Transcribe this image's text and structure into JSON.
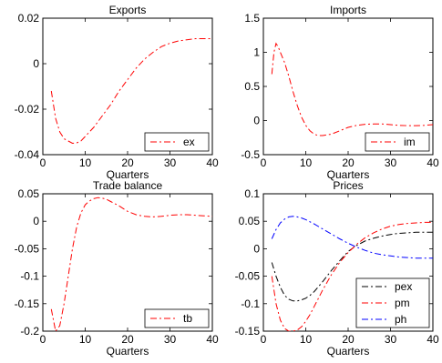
{
  "chart_data": [
    {
      "type": "line",
      "title": "Exports",
      "xlabel": "Quarters",
      "ylabel": "",
      "xlim": [
        0,
        40
      ],
      "ylim": [
        -0.04,
        0.02
      ],
      "xticks": [
        0,
        10,
        20,
        30,
        40
      ],
      "yticks": [
        -0.04,
        -0.02,
        0,
        0.02
      ],
      "xtick_labels": [
        "0",
        "10",
        "20",
        "30",
        "40"
      ],
      "ytick_labels": [
        "-0.04",
        "-0.02",
        "0",
        "0.02"
      ],
      "grid": false,
      "legend": "bottom-right",
      "series": [
        {
          "name": "ex",
          "color": "#ff0000",
          "dash": "dashdot",
          "x": [
            2,
            3,
            4,
            5,
            6,
            7,
            8,
            9,
            10,
            11,
            12,
            14,
            16,
            18,
            20,
            22,
            24,
            26,
            28,
            30,
            32,
            34,
            36,
            38,
            40
          ],
          "y": [
            -0.012,
            -0.024,
            -0.03,
            -0.033,
            -0.034,
            -0.035,
            -0.0348,
            -0.034,
            -0.032,
            -0.03,
            -0.028,
            -0.023,
            -0.018,
            -0.012,
            -0.007,
            -0.002,
            0.002,
            0.005,
            0.0075,
            0.009,
            0.01,
            0.0105,
            0.011,
            0.011,
            0.011
          ]
        }
      ]
    },
    {
      "type": "line",
      "title": "Imports",
      "xlabel": "Quarters",
      "ylabel": "",
      "xlim": [
        0,
        40
      ],
      "ylim": [
        -0.5,
        1.5
      ],
      "xticks": [
        0,
        10,
        20,
        30,
        40
      ],
      "yticks": [
        -0.5,
        0,
        0.5,
        1,
        1.5
      ],
      "xtick_labels": [
        "0",
        "10",
        "20",
        "30",
        "40"
      ],
      "ytick_labels": [
        "-0.5",
        "0",
        "0.5",
        "1",
        "1.5"
      ],
      "grid": false,
      "legend": "bottom-right",
      "series": [
        {
          "name": "im",
          "color": "#ff0000",
          "dash": "dashdot",
          "x": [
            2,
            2.5,
            3,
            3.5,
            4,
            5,
            6,
            7,
            8,
            9,
            10,
            11,
            12,
            13,
            14,
            16,
            18,
            20,
            22,
            24,
            26,
            28,
            30,
            32,
            34,
            36,
            38,
            40
          ],
          "y": [
            0.68,
            1.0,
            1.13,
            1.08,
            1.0,
            0.85,
            0.65,
            0.42,
            0.22,
            0.05,
            -0.07,
            -0.15,
            -0.2,
            -0.22,
            -0.22,
            -0.2,
            -0.15,
            -0.1,
            -0.07,
            -0.055,
            -0.05,
            -0.05,
            -0.06,
            -0.07,
            -0.075,
            -0.075,
            -0.07,
            -0.06
          ]
        }
      ]
    },
    {
      "type": "line",
      "title": "Trade balance",
      "xlabel": "Quarters",
      "ylabel": "",
      "xlim": [
        0,
        40
      ],
      "ylim": [
        -0.2,
        0.05
      ],
      "xticks": [
        0,
        10,
        20,
        30,
        40
      ],
      "yticks": [
        -0.2,
        -0.15,
        -0.1,
        -0.05,
        0,
        0.05
      ],
      "xtick_labels": [
        "0",
        "10",
        "20",
        "30",
        "40"
      ],
      "ytick_labels": [
        "-0.2",
        "-0.15",
        "-0.1",
        "-0.05",
        "0",
        "0.05"
      ],
      "grid": false,
      "legend": "bottom-right",
      "series": [
        {
          "name": "tb",
          "color": "#ff0000",
          "dash": "dashdot",
          "x": [
            2,
            3,
            4,
            5,
            6,
            7,
            8,
            9,
            10,
            11,
            12,
            13,
            14,
            15,
            16,
            18,
            20,
            22,
            24,
            26,
            28,
            30,
            32,
            34,
            36,
            38,
            40
          ],
          "y": [
            -0.16,
            -0.2,
            -0.19,
            -0.15,
            -0.1,
            -0.05,
            -0.01,
            0.015,
            0.03,
            0.037,
            0.041,
            0.043,
            0.042,
            0.04,
            0.036,
            0.028,
            0.018,
            0.012,
            0.009,
            0.008,
            0.009,
            0.011,
            0.012,
            0.012,
            0.011,
            0.01,
            0.009
          ]
        }
      ]
    },
    {
      "type": "line",
      "title": "Prices",
      "xlabel": "Quarters",
      "ylabel": "",
      "xlim": [
        0,
        40
      ],
      "ylim": [
        -0.15,
        0.1
      ],
      "xticks": [
        0,
        10,
        20,
        30,
        40
      ],
      "yticks": [
        -0.15,
        -0.1,
        -0.05,
        0,
        0.05,
        0.1
      ],
      "xtick_labels": [
        "0",
        "10",
        "20",
        "30",
        "40"
      ],
      "ytick_labels": [
        "-0.15",
        "-0.1",
        "-0.05",
        "0",
        "0.05",
        "0.1"
      ],
      "grid": false,
      "legend": "bottom-right",
      "series": [
        {
          "name": "pex",
          "color": "#000000",
          "dash": "dashdot",
          "x": [
            2,
            3,
            4,
            5,
            6,
            7,
            8,
            9,
            10,
            11,
            12,
            14,
            16,
            18,
            20,
            22,
            24,
            26,
            28,
            30,
            32,
            34,
            36,
            38,
            40
          ],
          "y": [
            -0.025,
            -0.05,
            -0.07,
            -0.085,
            -0.092,
            -0.095,
            -0.095,
            -0.093,
            -0.09,
            -0.085,
            -0.078,
            -0.06,
            -0.04,
            -0.022,
            -0.005,
            0.006,
            0.014,
            0.019,
            0.023,
            0.026,
            0.028,
            0.029,
            0.03,
            0.03,
            0.03
          ]
        },
        {
          "name": "pm",
          "color": "#ff0000",
          "dash": "dashdot",
          "x": [
            2,
            3,
            4,
            5,
            6,
            7,
            8,
            9,
            10,
            11,
            12,
            14,
            16,
            18,
            20,
            22,
            24,
            26,
            28,
            30,
            32,
            34,
            36,
            38,
            40
          ],
          "y": [
            -0.05,
            -0.1,
            -0.13,
            -0.145,
            -0.15,
            -0.15,
            -0.148,
            -0.142,
            -0.132,
            -0.12,
            -0.105,
            -0.075,
            -0.048,
            -0.025,
            -0.007,
            0.008,
            0.02,
            0.029,
            0.036,
            0.041,
            0.044,
            0.046,
            0.047,
            0.048,
            0.048
          ]
        },
        {
          "name": "ph",
          "color": "#0000ff",
          "dash": "dashdot",
          "x": [
            2,
            3,
            4,
            5,
            6,
            7,
            8,
            9,
            10,
            11,
            12,
            14,
            16,
            18,
            20,
            22,
            24,
            26,
            28,
            30,
            32,
            34,
            36,
            38,
            40
          ],
          "y": [
            0.018,
            0.035,
            0.047,
            0.054,
            0.058,
            0.059,
            0.058,
            0.056,
            0.053,
            0.049,
            0.045,
            0.036,
            0.027,
            0.018,
            0.01,
            0.003,
            -0.003,
            -0.008,
            -0.011,
            -0.013,
            -0.015,
            -0.016,
            -0.017,
            -0.017,
            -0.017
          ]
        }
      ]
    }
  ]
}
